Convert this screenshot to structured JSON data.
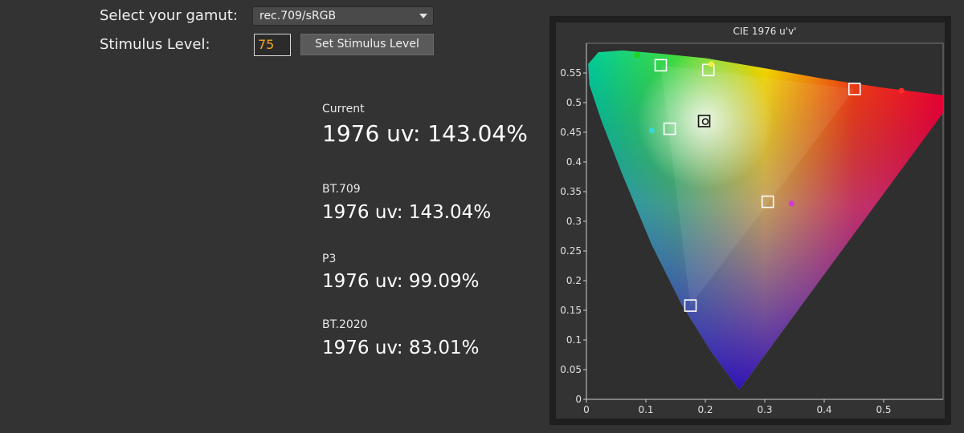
{
  "controls": {
    "gamut_label": "Select your gamut:",
    "gamut_value": "rec.709/sRGB",
    "stimulus_label": "Stimulus Level:",
    "stimulus_value": "75",
    "set_button": "Set Stimulus Level"
  },
  "metrics": [
    {
      "label": "Current",
      "value": "1976 uv: 143.04%"
    },
    {
      "label": "BT.709",
      "value": "1976 uv: 143.04%"
    },
    {
      "label": "P3",
      "value": "1976 uv: 99.09%"
    },
    {
      "label": "BT.2020",
      "value": "1976 uv: 83.01%"
    }
  ],
  "chart_data": {
    "type": "scatter",
    "title": "CIE 1976 u'v'",
    "xlim": [
      0,
      0.6
    ],
    "ylim": [
      0,
      0.6
    ],
    "x_ticks": [
      "0",
      "0.1",
      "0.2",
      "0.3",
      "0.4",
      "0.5"
    ],
    "y_ticks": [
      "0",
      "0.05",
      "0.1",
      "0.15",
      "0.2",
      "0.25",
      "0.3",
      "0.35",
      "0.4",
      "0.45",
      "0.5",
      "0.55"
    ],
    "colors": {
      "red": "#ff2a2a",
      "green": "#1fd21f",
      "blue": "#2a2aff",
      "cyan": "#36d9d9",
      "magenta": "#d23ad2",
      "yellow": "#f3ee3a"
    },
    "target_squares": [
      {
        "u": 0.451,
        "v": 0.523
      },
      {
        "u": 0.125,
        "v": 0.563
      },
      {
        "u": 0.175,
        "v": 0.158
      },
      {
        "u": 0.205,
        "v": 0.555
      },
      {
        "u": 0.14,
        "v": 0.456
      },
      {
        "u": 0.305,
        "v": 0.333
      },
      {
        "u": 0.198,
        "v": 0.469
      }
    ],
    "measured_points": [
      {
        "u": 0.53,
        "v": 0.52,
        "color": "#ff2a2a"
      },
      {
        "u": 0.085,
        "v": 0.58,
        "color": "#1fd21f"
      },
      {
        "u": 0.21,
        "v": 0.565,
        "color": "#f3ee3a"
      },
      {
        "u": 0.11,
        "v": 0.453,
        "color": "#36d9d9"
      },
      {
        "u": 0.345,
        "v": 0.33,
        "color": "#d23ad2"
      },
      {
        "u": 0.2,
        "v": 0.468,
        "color": "#ffffff"
      }
    ]
  }
}
